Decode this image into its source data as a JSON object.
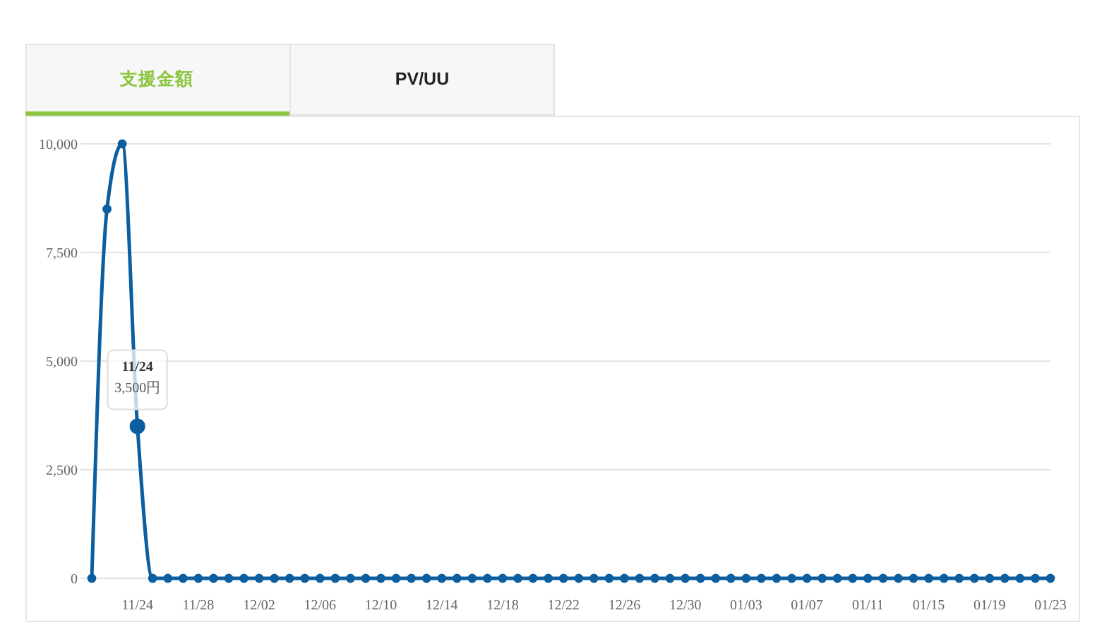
{
  "chart_data": {
    "type": "line",
    "title": "支援金額",
    "categories": [
      null,
      null,
      null,
      "11/24",
      null,
      null,
      null,
      "11/28",
      null,
      null,
      null,
      "12/02",
      null,
      null,
      null,
      "12/06",
      null,
      null,
      null,
      "12/10",
      null,
      null,
      null,
      "12/14",
      null,
      null,
      null,
      "12/18",
      null,
      null,
      null,
      "12/22",
      null,
      null,
      null,
      "12/26",
      null,
      null,
      null,
      "12/30",
      null,
      null,
      null,
      "01/03",
      null,
      null,
      null,
      "01/07",
      null,
      null,
      null,
      "01/11",
      null,
      null,
      null,
      "01/15",
      null,
      null,
      null,
      "01/19",
      null,
      null,
      null,
      "01/23"
    ],
    "values": [
      0,
      8500,
      10000,
      3500,
      0,
      0,
      0,
      0,
      0,
      0,
      0,
      0,
      0,
      0,
      0,
      0,
      0,
      0,
      0,
      0,
      0,
      0,
      0,
      0,
      0,
      0,
      0,
      0,
      0,
      0,
      0,
      0,
      0,
      0,
      0,
      0,
      0,
      0,
      0,
      0,
      0,
      0,
      0,
      0,
      0,
      0,
      0,
      0,
      0,
      0,
      0,
      0,
      0,
      0,
      0,
      0,
      0,
      0,
      0,
      0,
      0,
      0,
      0,
      0
    ],
    "color": "#0b5e9f",
    "ylim": [
      0,
      10000
    ],
    "yticks": [
      0,
      {
        "value": 2500,
        "label": "2,500"
      },
      {
        "value": 5000,
        "label": "5,000"
      },
      {
        "value": 7500,
        "label": "7,500"
      },
      {
        "value": 10000,
        "label": "10,000"
      }
    ],
    "grid": "y",
    "marker": "circle",
    "annotations": [
      {
        "text": "11/24\n3,500円",
        "x": "11/24",
        "y": 3500
      },
      "PV/UU"
    ]
  }
}
